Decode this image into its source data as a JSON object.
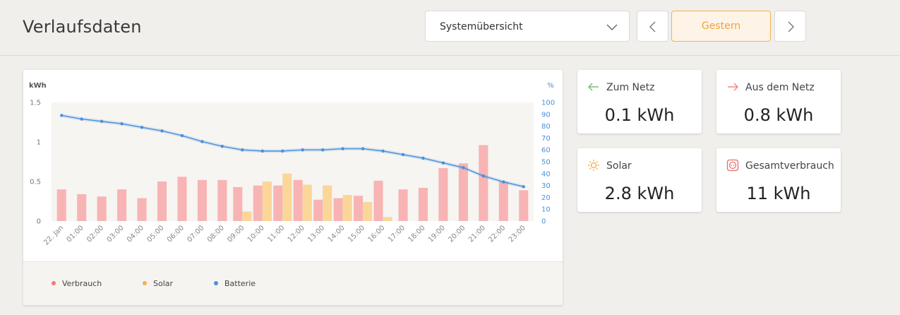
{
  "header": {
    "title": "Verlaufsdaten",
    "view_select": "Systemübersicht",
    "date_label": "Gestern"
  },
  "stats": [
    {
      "icon": "arrow-left-icon",
      "label": "Zum Netz",
      "value": "0.1 kWh",
      "color": "#7cc06f"
    },
    {
      "icon": "arrow-right-icon",
      "label": "Aus dem Netz",
      "value": "0.8 kWh",
      "color": "#ef8a8a"
    },
    {
      "icon": "sun-icon",
      "label": "Solar",
      "value": "2.8 kWh",
      "color": "#f3a94a"
    },
    {
      "icon": "plug-outlet-icon",
      "label": "Gesamtverbrauch",
      "value": "11 kWh",
      "color": "#e96a6a"
    }
  ],
  "legend": [
    {
      "label": "Verbrauch",
      "color": "#f07a7a"
    },
    {
      "label": "Solar",
      "color": "#f5b04e"
    },
    {
      "label": "Batterie",
      "color": "#4a90d9"
    }
  ],
  "chart_data": {
    "type": "bar",
    "left_axis_unit": "kWh",
    "right_axis_unit": "%",
    "left_ticks": [
      "1.5",
      "1",
      "0.5",
      "0"
    ],
    "right_ticks": [
      "100",
      "90",
      "80",
      "70",
      "60",
      "50",
      "40",
      "30",
      "20",
      "10",
      "0"
    ],
    "ylim": [
      0,
      1.5
    ],
    "y2lim": [
      0,
      100
    ],
    "categories": [
      "22. Jan",
      "01:00",
      "02:00",
      "03:00",
      "04:00",
      "05:00",
      "06:00",
      "07:00",
      "08:00",
      "09:00",
      "10:00",
      "11:00",
      "12:00",
      "13:00",
      "14:00",
      "15:00",
      "16:00",
      "17:00",
      "18:00",
      "19:00",
      "20:00",
      "21:00",
      "22:00",
      "23:00"
    ],
    "series": [
      {
        "name": "Verbrauch",
        "type": "bar",
        "axis": "left",
        "color": "#f8b4b4",
        "values": [
          0.4,
          0.34,
          0.31,
          0.4,
          0.29,
          0.5,
          0.56,
          0.52,
          0.52,
          0.43,
          0.45,
          0.45,
          0.52,
          0.27,
          0.29,
          0.32,
          0.51,
          0.4,
          0.42,
          0.67,
          0.73,
          0.96,
          0.5,
          0.39
        ]
      },
      {
        "name": "Solar",
        "type": "bar",
        "axis": "left",
        "color": "#fbd699",
        "values": [
          0,
          0,
          0,
          0,
          0,
          0,
          0,
          0,
          0,
          0.12,
          0.5,
          0.6,
          0.46,
          0.45,
          0.33,
          0.24,
          0.05,
          0,
          0,
          0,
          0,
          0,
          0,
          0
        ]
      },
      {
        "name": "Batterie",
        "type": "line",
        "axis": "right",
        "color": "#4a90d9",
        "values": [
          89,
          86,
          84,
          82,
          79,
          76,
          72,
          67,
          63,
          60,
          59,
          59,
          60,
          60,
          61,
          61,
          59,
          56,
          53,
          49,
          45,
          38,
          33,
          29
        ]
      }
    ]
  }
}
